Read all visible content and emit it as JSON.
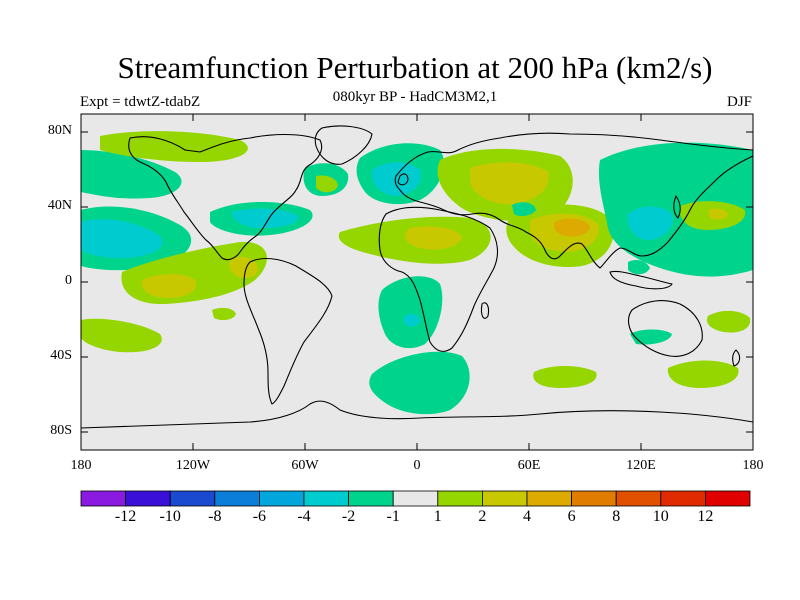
{
  "title": "Streamfunction Perturbation at 200 hPa (km2/s)",
  "subtitle": "080kyr BP - HadCM3M2,1",
  "left_label": "Expt = tdwtZ-tdabZ",
  "right_label": "DJF",
  "latitude_ticks": [
    "80N",
    "40N",
    "0",
    "40S",
    "80S"
  ],
  "longitude_ticks": [
    "180",
    "120W",
    "60W",
    "0",
    "60E",
    "120E",
    "180"
  ],
  "colorbar": {
    "labels": [
      "-12",
      "-10",
      "-8",
      "-6",
      "-4",
      "-2",
      "-1",
      "1",
      "2",
      "4",
      "6",
      "8",
      "10",
      "12"
    ],
    "colors": [
      "#8a1ae0",
      "#3a10d8",
      "#1a4ad0",
      "#0a7ed8",
      "#00a6dc",
      "#00ccd0",
      "#00d48c",
      "#e8e8e8",
      "#96d600",
      "#c8c800",
      "#dcaa00",
      "#e07c00",
      "#e05000",
      "#e02a00",
      "#e00000"
    ]
  },
  "colors": {
    "background": "#e8e8e8",
    "coastline": "#000000"
  }
}
